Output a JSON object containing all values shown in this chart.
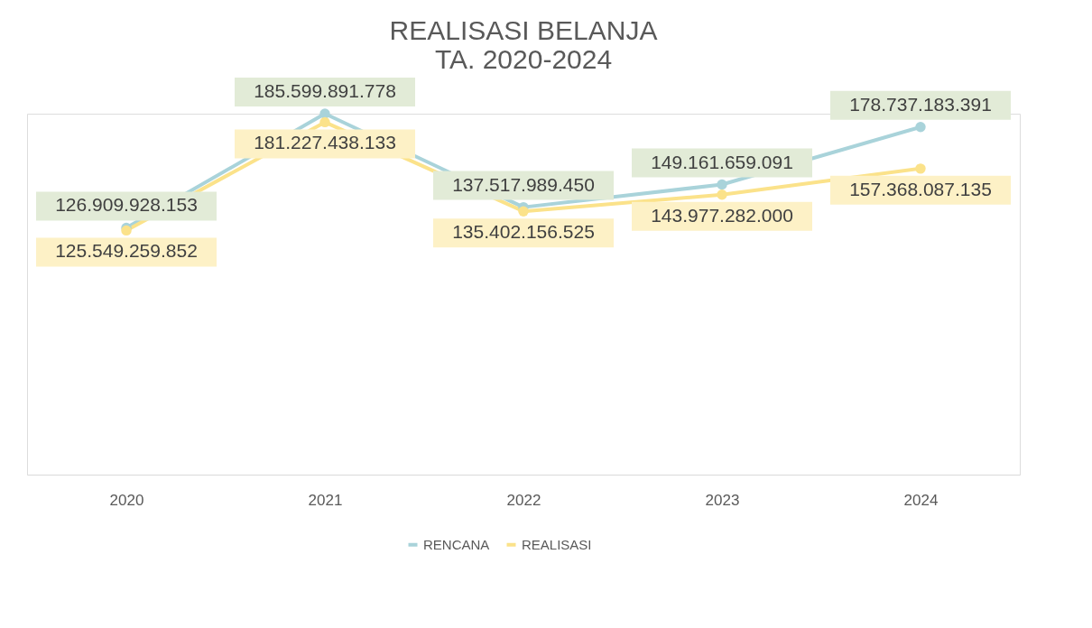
{
  "chart_data": {
    "type": "line",
    "title": "REALISASI BELANJA\nTA. 2020-2024",
    "categories": [
      "2020",
      "2021",
      "2022",
      "2023",
      "2024"
    ],
    "series": [
      {
        "name": "RENCANA",
        "color": "#a9d3da",
        "values": [
          126909928153,
          185599891778,
          137517989450,
          149161659091,
          178737183391
        ],
        "value_labels": [
          "126.909.928.153",
          "185.599.891.778",
          "137.517.989.450",
          "149.161.659.091",
          "178.737.183.391"
        ]
      },
      {
        "name": "REALISASI",
        "color": "#fbe28a",
        "values": [
          125549259852,
          181227438133,
          135402156525,
          143977282000,
          157368087135
        ],
        "value_labels": [
          "125.549.259.852",
          "181.227.438.133",
          "135.402.156.525",
          "143.977.282.000",
          "157.368.087.135"
        ]
      }
    ],
    "marker": "circle",
    "line_style": "solid",
    "legend": "bottom",
    "grid": false
  }
}
